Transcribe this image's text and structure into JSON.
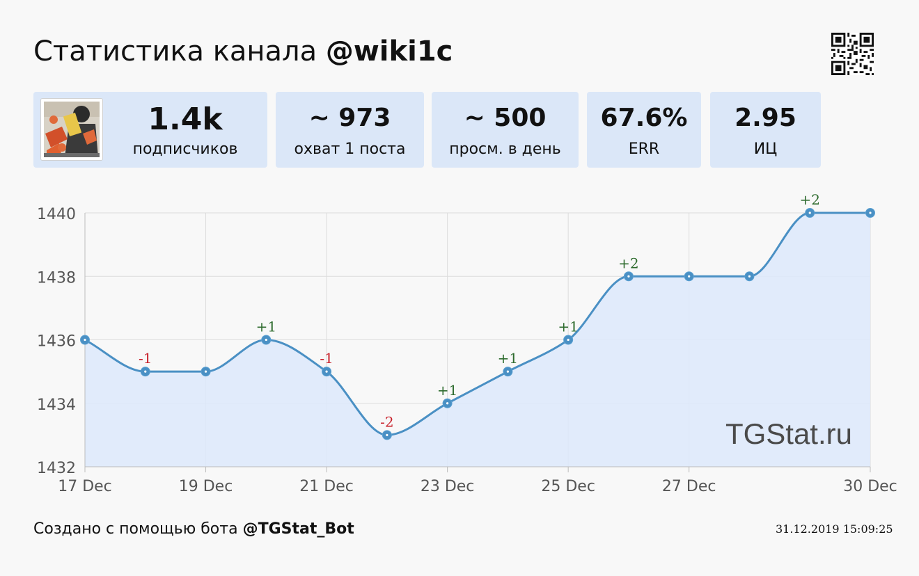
{
  "header": {
    "title_prefix": "Статистика канала ",
    "channel": "@wiki1c"
  },
  "stats": [
    {
      "value": "1.4k",
      "label": "подписчиков"
    },
    {
      "value": "~ 973",
      "label": "охват 1 поста"
    },
    {
      "value": "~ 500",
      "label": "просм. в день"
    },
    {
      "value": "67.6%",
      "label": "ERR"
    },
    {
      "value": "2.95",
      "label": "ИЦ"
    }
  ],
  "icons": {
    "avatar": "channel-avatar-icon",
    "qr": "qr-code-icon"
  },
  "chart_data": {
    "type": "line",
    "x": [
      "17 Dec",
      "18 Dec",
      "19 Dec",
      "20 Dec",
      "21 Dec",
      "22 Dec",
      "23 Dec",
      "24 Dec",
      "25 Dec",
      "26 Dec",
      "27 Dec",
      "28 Dec",
      "29 Dec",
      "30 Dec"
    ],
    "values": [
      1436,
      1435,
      1435,
      1436,
      1435,
      1433,
      1434,
      1435,
      1436,
      1438,
      1438,
      1438,
      1440,
      1440
    ],
    "change_labels": [
      "",
      "-1",
      "",
      "+1",
      "-1",
      "-2",
      "+1",
      "+1",
      "+1",
      "+2",
      "",
      "",
      "+2",
      ""
    ],
    "x_tick_labels": [
      "17 Dec",
      "19 Dec",
      "21 Dec",
      "23 Dec",
      "25 Dec",
      "27 Dec",
      "30 Dec"
    ],
    "x_tick_indices": [
      0,
      2,
      4,
      6,
      8,
      10,
      13
    ],
    "y_ticks": [
      1432,
      1434,
      1436,
      1438,
      1440
    ],
    "ylim": [
      1432,
      1440
    ],
    "grid": true,
    "watermark": "TGStat.ru",
    "colors": {
      "line": "#4a90c4",
      "fill": "#dde9fb",
      "positive": "#2e6b2e",
      "negative": "#c8202a",
      "grid": "#dcdcdc",
      "tick_text": "#555555"
    }
  },
  "footer": {
    "prefix": "Создано с помощью бота ",
    "bot": "@TGStat_Bot",
    "timestamp": "31.12.2019 15:09:25"
  }
}
